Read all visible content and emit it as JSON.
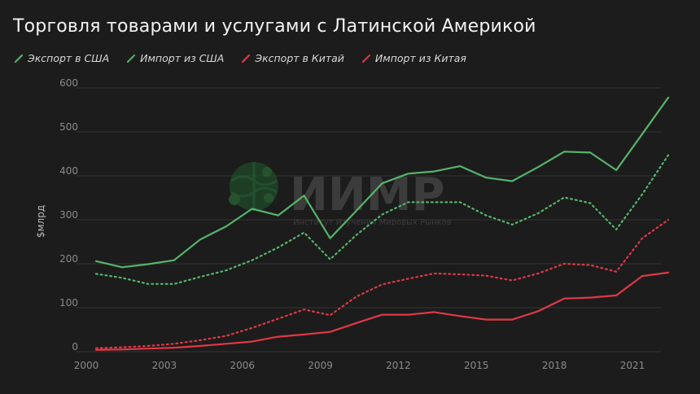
{
  "chart_data": {
    "type": "line",
    "title": "Торговля товарами и услугами с Латинской Америкой",
    "ylabel": "$млрд",
    "xlabel": "",
    "xlim": [
      2000,
      2021.5
    ],
    "ylim": [
      0,
      600
    ],
    "x_ticks": [
      "2000",
      "2003",
      "2006",
      "2009",
      "2012",
      "2015",
      "2018",
      "2021"
    ],
    "y_ticks": [
      "0",
      "100",
      "200",
      "300",
      "400",
      "500",
      "600"
    ],
    "grid": "horizontal",
    "legend_position": "top-left",
    "x": [
      2000,
      2001,
      2002,
      2003,
      2004,
      2005,
      2006,
      2007,
      2008,
      2009,
      2010,
      2011,
      2012,
      2013,
      2014,
      2015,
      2016,
      2017,
      2018,
      2019,
      2020,
      2021,
      2022
    ],
    "series": [
      {
        "name": "Экспорт в США",
        "color": "#55b46c",
        "dash": "solid",
        "values": [
          206,
          192,
          199,
          208,
          255,
          285,
          325,
          310,
          355,
          258,
          320,
          383,
          405,
          410,
          422,
          396,
          388,
          420,
          455,
          453,
          413,
          495,
          578
        ]
      },
      {
        "name": "Импорт из США",
        "color": "#55b46c",
        "dash": "dotted",
        "values": [
          177,
          168,
          154,
          154,
          170,
          185,
          208,
          237,
          271,
          210,
          265,
          312,
          340,
          340,
          340,
          310,
          289,
          315,
          351,
          338,
          278,
          358,
          447
        ]
      },
      {
        "name": "Экспорт в Китай",
        "color": "#e03845",
        "dash": "solid",
        "values": [
          4,
          5,
          7,
          9,
          13,
          18,
          23,
          34,
          39,
          45,
          65,
          84,
          84,
          90,
          81,
          73,
          73,
          92,
          121,
          123,
          128,
          172,
          180
        ]
      },
      {
        "name": "Импорт из Китая",
        "color": "#e03845",
        "dash": "dotted",
        "values": [
          8,
          10,
          13,
          18,
          26,
          36,
          54,
          75,
          96,
          83,
          125,
          153,
          166,
          178,
          176,
          173,
          162,
          178,
          200,
          197,
          182,
          258,
          300
        ]
      }
    ]
  },
  "watermark": {
    "brand": "ИИМР",
    "tagline": "Институт Изучения Мировых Рынков"
  }
}
